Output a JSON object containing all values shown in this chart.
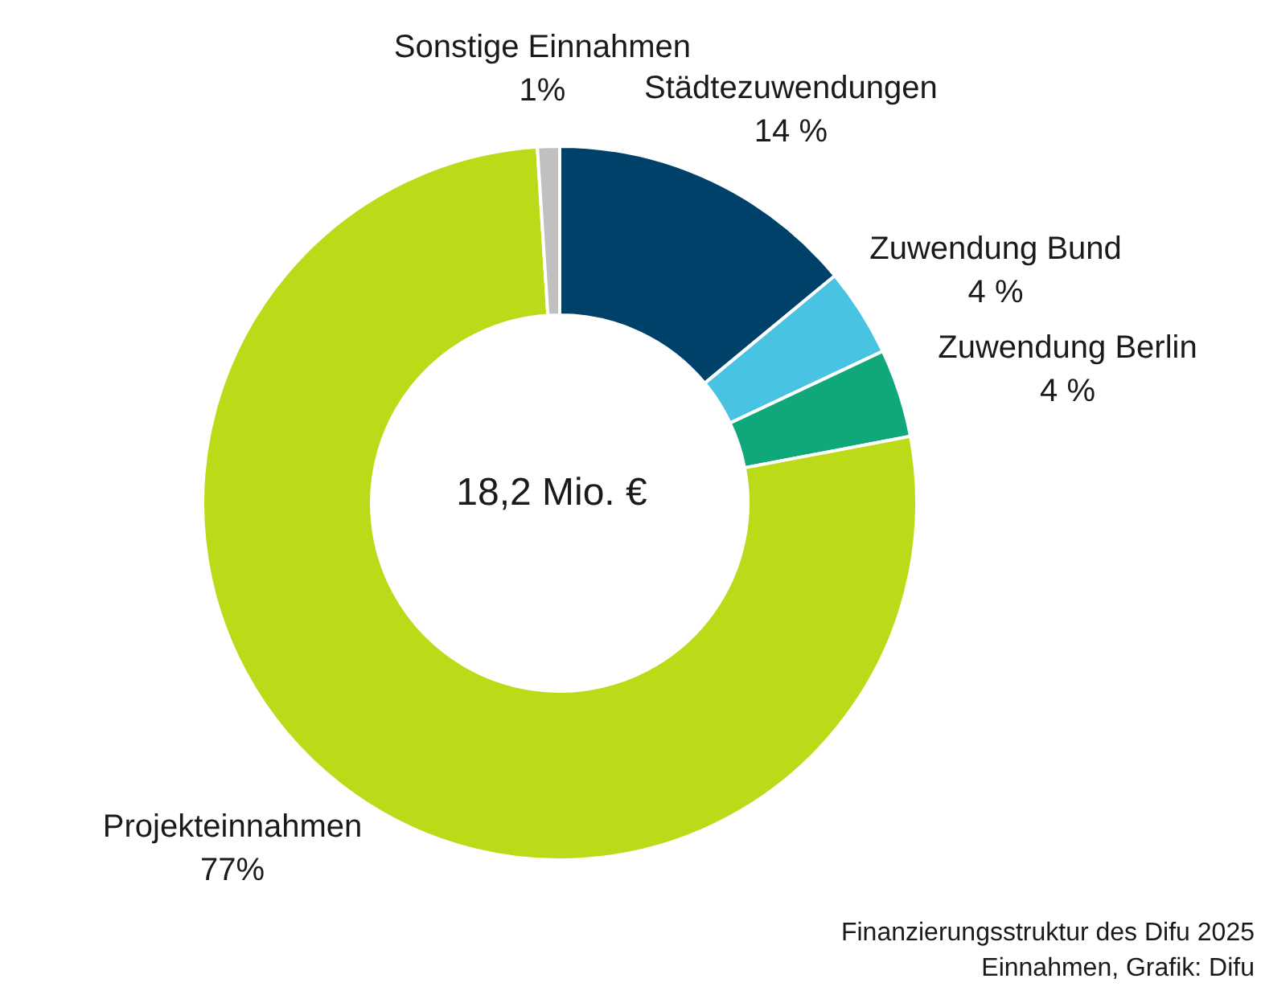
{
  "chart_data": {
    "type": "donut",
    "categories": [
      "Städtezuwendungen",
      "Zuwendung Bund",
      "Zuwendung Berlin",
      "Projekteinnahmen",
      "Sonstige Einnahmen"
    ],
    "values": [
      14,
      4,
      4,
      77,
      1
    ],
    "value_labels": [
      "14 %",
      "4 %",
      "4 %",
      "77%",
      "1%"
    ],
    "colors": [
      "#004169",
      "#48c4e2",
      "#10a87a",
      "#bbdb18",
      "#c0c0c0"
    ],
    "annotations": [
      "18,2 Mio. €",
      "Finanzierungsstruktur des Difu 2025",
      "Einnahmen, Grafik: Difu"
    ]
  }
}
